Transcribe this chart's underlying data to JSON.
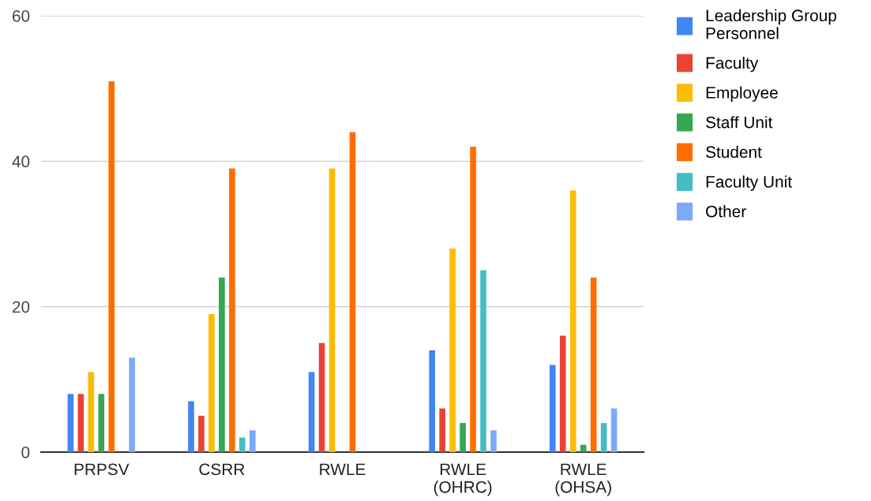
{
  "chart_data": {
    "type": "bar",
    "categories": [
      "PRPSV",
      "CSRR",
      "RWLE",
      "RWLE\n(OHRC)",
      "RWLE\n(OHSA)"
    ],
    "series": [
      {
        "name": "Leadership Group\nPersonnel",
        "color": "#4285f4",
        "values": [
          8,
          7,
          11,
          14,
          12
        ]
      },
      {
        "name": "Faculty",
        "color": "#ea4335",
        "values": [
          8,
          5,
          15,
          6,
          16
        ]
      },
      {
        "name": "Employee",
        "color": "#fbbc04",
        "values": [
          11,
          19,
          39,
          28,
          36
        ]
      },
      {
        "name": "Staff Unit",
        "color": "#34a853",
        "values": [
          8,
          24,
          null,
          4,
          1
        ]
      },
      {
        "name": "Student",
        "color": "#ff6d01",
        "values": [
          51,
          39,
          44,
          42,
          24
        ]
      },
      {
        "name": "Faculty Unit",
        "color": "#46bdc6",
        "values": [
          null,
          2,
          null,
          25,
          4
        ]
      },
      {
        "name": "Other",
        "color": "#7baaf7",
        "values": [
          13,
          3,
          null,
          3,
          6
        ]
      }
    ],
    "ylim": [
      0,
      60
    ],
    "yticks": [
      0,
      20,
      40,
      60
    ],
    "grid": "y",
    "legend": "top right"
  }
}
